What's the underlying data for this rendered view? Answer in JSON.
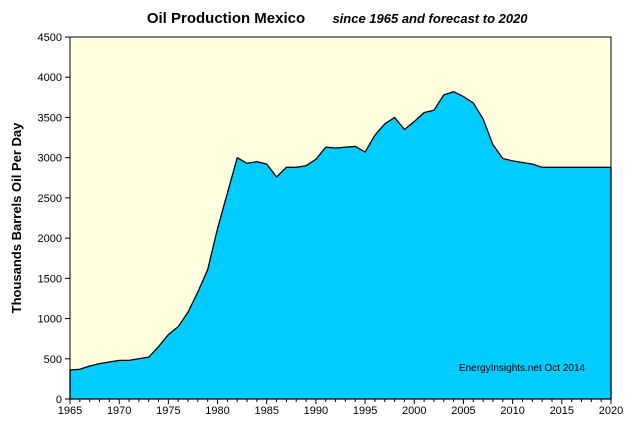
{
  "chart_data": {
    "type": "area",
    "title": "Oil Production  Mexico",
    "subtitle": "since 1965 and forecast to 2020",
    "xlabel": "",
    "ylabel": "Thousands Barrels Oil Per Day",
    "xlim": [
      1965,
      2020
    ],
    "ylim": [
      0,
      4500
    ],
    "x_ticks": [
      "1965",
      "1970",
      "1975",
      "1980",
      "1985",
      "1990",
      "1995",
      "2000",
      "2005",
      "2010",
      "2015",
      "2020"
    ],
    "y_ticks": [
      "0",
      "500",
      "1000",
      "1500",
      "2000",
      "2500",
      "3000",
      "3500",
      "4000",
      "4500"
    ],
    "annotation": "EnergyInsights.net   Oct 2014",
    "grid": false,
    "legend": "none",
    "fill_color": "#00ccff",
    "plot_background": "#ffffe0",
    "x": [
      1965,
      1966,
      1967,
      1968,
      1969,
      1970,
      1971,
      1972,
      1973,
      1974,
      1975,
      1976,
      1977,
      1978,
      1979,
      1980,
      1981,
      1982,
      1983,
      1984,
      1985,
      1986,
      1987,
      1988,
      1989,
      1990,
      1991,
      1992,
      1993,
      1994,
      1995,
      1996,
      1997,
      1998,
      1999,
      2000,
      2001,
      2002,
      2003,
      2004,
      2005,
      2006,
      2007,
      2008,
      2009,
      2010,
      2011,
      2012,
      2013,
      2014,
      2015,
      2016,
      2017,
      2018,
      2019,
      2020
    ],
    "values": [
      360,
      370,
      410,
      440,
      460,
      480,
      480,
      500,
      520,
      650,
      800,
      900,
      1080,
      1330,
      1610,
      2120,
      2560,
      3000,
      2930,
      2950,
      2920,
      2760,
      2880,
      2880,
      2900,
      2980,
      3130,
      3120,
      3130,
      3140,
      3070,
      3280,
      3420,
      3500,
      3350,
      3450,
      3560,
      3590,
      3780,
      3820,
      3760,
      3680,
      3480,
      3160,
      2990,
      2960,
      2940,
      2920,
      2880,
      2880,
      2880,
      2880,
      2880,
      2880,
      2880,
      2880
    ]
  }
}
